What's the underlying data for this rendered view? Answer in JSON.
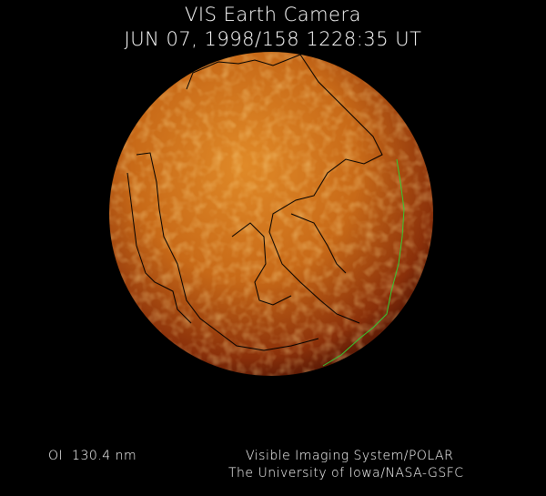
{
  "header": {
    "title": "VIS Earth Camera",
    "timestamp": "JUN 07, 1998/158 1228:35 UT"
  },
  "footer": {
    "filter": "OI  130.4 nm",
    "credit_line1": "Visible Imaging System/POLAR",
    "credit_line2": "The University of Iowa/NASA-GSFC"
  },
  "colors": {
    "background": "#000000",
    "globe_bright": "#f0a030",
    "globe_mid": "#b8500c",
    "globe_dark": "#4a1204",
    "coastline": "#000000",
    "terminator_coast": "#33cc33"
  }
}
